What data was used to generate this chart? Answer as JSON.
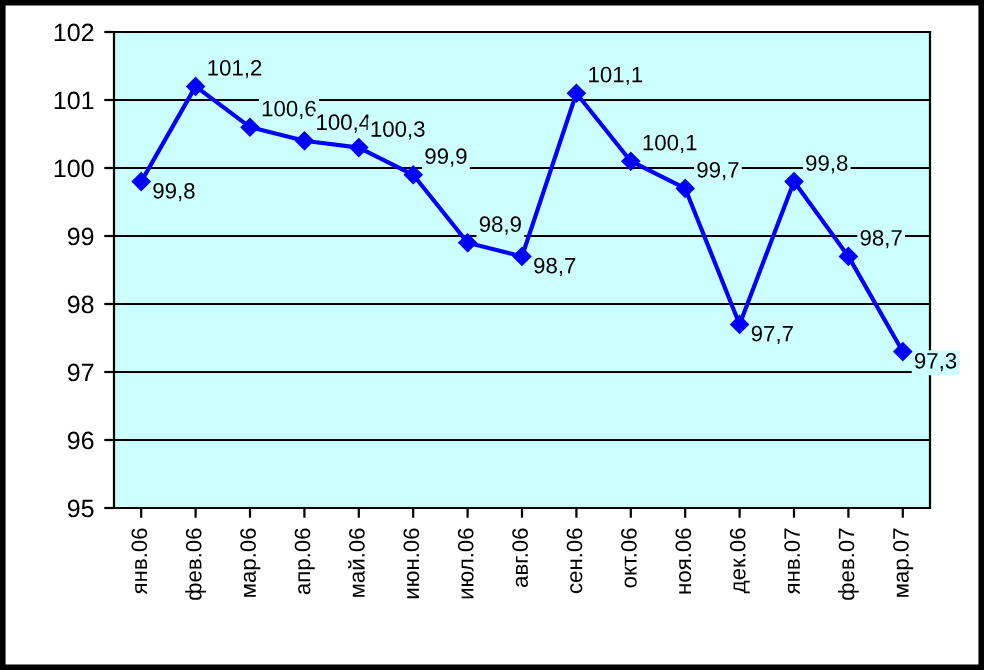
{
  "chart_data": {
    "type": "line",
    "categories": [
      "янв.06",
      "фев.06",
      "мар.06",
      "апр.06",
      "май.06",
      "июн.06",
      "июл.06",
      "авг.06",
      "сен.06",
      "окт.06",
      "ноя.06",
      "дек.06",
      "янв.07",
      "фев.07",
      "мар.07"
    ],
    "series": [
      {
        "color": "#0000ff",
        "values": [
          99.8,
          101.2,
          100.6,
          100.4,
          100.3,
          99.9,
          98.9,
          98.7,
          101.1,
          100.1,
          99.7,
          97.7,
          99.8,
          98.7,
          97.3
        ],
        "value_labels": [
          "99,8",
          "101,2",
          "100,6",
          "100,4",
          "100,3",
          "99,9",
          "98,9",
          "98,7",
          "101,1",
          "100,1",
          "99,7",
          "97,7",
          "99,8",
          "98,7",
          "97,3"
        ]
      }
    ],
    "ylim": [
      95,
      102
    ],
    "yticks": [
      95,
      96,
      97,
      98,
      99,
      100,
      101,
      102
    ],
    "grid": "y",
    "marker": "diamond",
    "line_style": "solid"
  }
}
